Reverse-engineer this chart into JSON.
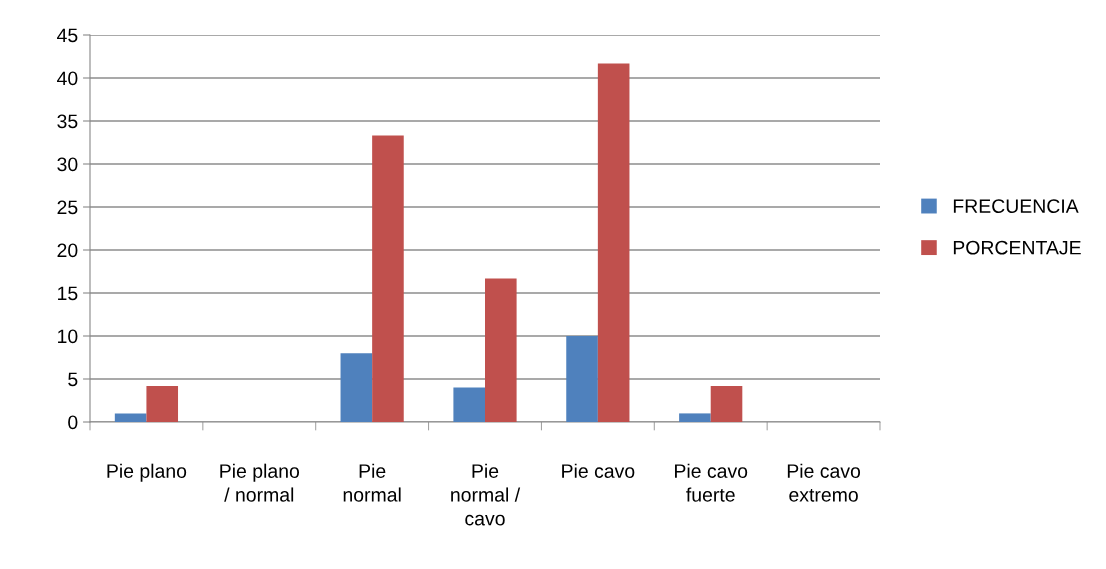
{
  "chart_data": {
    "type": "bar",
    "categories": [
      "Pie plano",
      "Pie plano\n/ normal",
      "Pie\nnormal",
      "Pie\nnormal /\ncavo",
      "Pie cavo",
      "Pie cavo\nfuerte",
      "Pie cavo\nextremo"
    ],
    "series": [
      {
        "name": "FRECUENCIA",
        "color": "#4f81bd",
        "values": [
          1,
          0,
          8,
          4,
          10,
          1,
          0
        ]
      },
      {
        "name": "PORCENTAJE",
        "color": "#c0504d",
        "values": [
          4.2,
          0,
          33.3,
          16.7,
          41.7,
          4.2,
          0
        ]
      }
    ],
    "ylim": [
      0,
      45
    ],
    "yticks": [
      0,
      5,
      10,
      15,
      20,
      25,
      30,
      35,
      40,
      45
    ],
    "grid": "y",
    "legend": "right"
  }
}
